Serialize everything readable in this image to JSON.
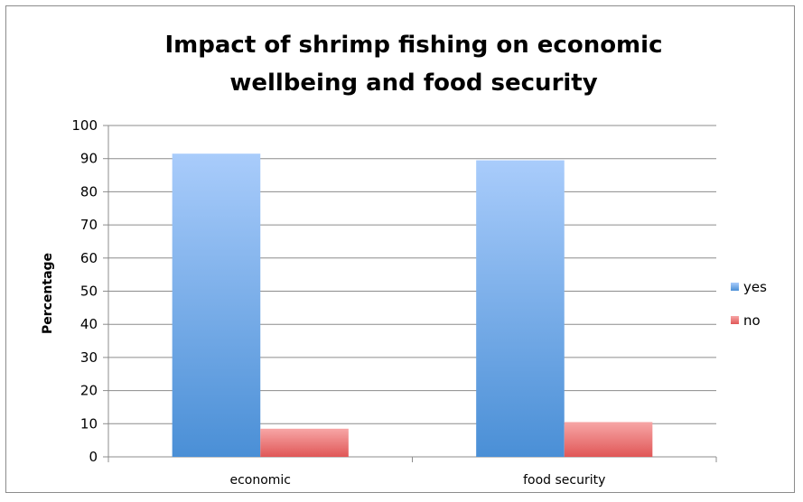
{
  "chart_data": {
    "type": "bar",
    "title_lines": [
      "Impact of shrimp fishing on economic",
      "wellbeing and food security"
    ],
    "categories": [
      "economic",
      "food security"
    ],
    "series": [
      {
        "name": "yes",
        "values": [
          91.5,
          89.5
        ],
        "color_top": "#a9ccfb",
        "color_bottom": "#4a8fd6"
      },
      {
        "name": "no",
        "values": [
          8.5,
          10.5
        ],
        "color_top": "#f7a6a6",
        "color_bottom": "#e05757"
      }
    ],
    "xlabel": "",
    "ylabel": "Percentage",
    "ylim": [
      0,
      100
    ],
    "yticks": [
      0,
      10,
      20,
      30,
      40,
      50,
      60,
      70,
      80,
      90,
      100
    ],
    "grid": true,
    "legend_position": "right"
  }
}
